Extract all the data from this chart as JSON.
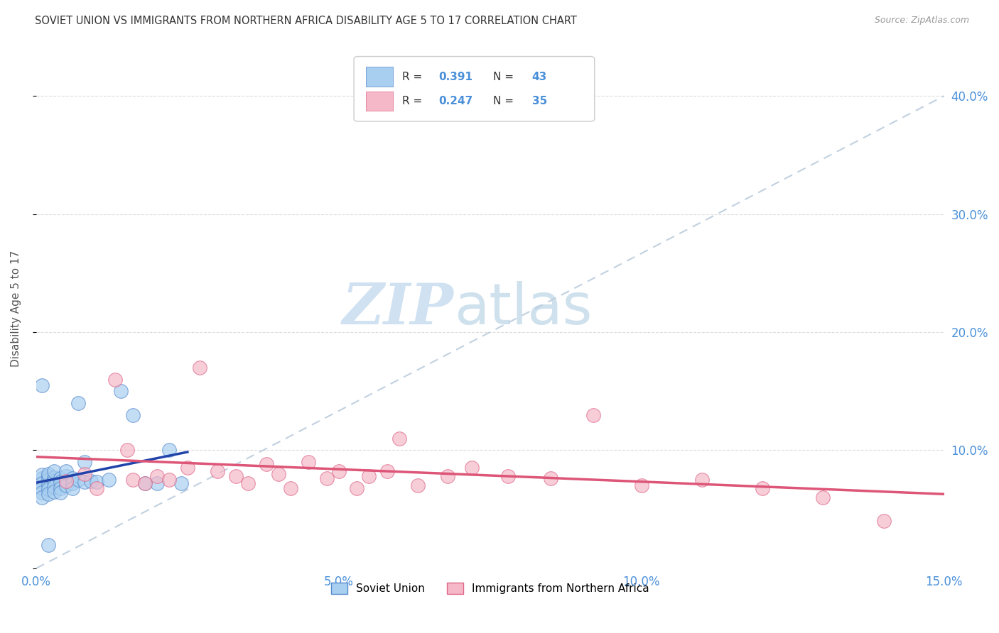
{
  "title": "SOVIET UNION VS IMMIGRANTS FROM NORTHERN AFRICA DISABILITY AGE 5 TO 17 CORRELATION CHART",
  "source": "Source: ZipAtlas.com",
  "tick_color": "#4a90d9",
  "ylabel": "Disability Age 5 to 17",
  "xlim": [
    0.0,
    0.15
  ],
  "ylim": [
    0.0,
    0.44
  ],
  "x_ticks": [
    0.0,
    0.05,
    0.1,
    0.15
  ],
  "x_tick_labels": [
    "0.0%",
    "5.0%",
    "10.0%",
    "15.0%"
  ],
  "y_ticks_right": [
    0.0,
    0.1,
    0.2,
    0.3,
    0.4
  ],
  "y_tick_labels_right": [
    "",
    "10.0%",
    "20.0%",
    "30.0%",
    "40.0%"
  ],
  "blue_scatter_color": "#A8CFF0",
  "blue_edge_color": "#5588CC",
  "pink_scatter_color": "#F5B8C8",
  "pink_edge_color": "#DD6688",
  "blue_line_color": "#2244AA",
  "pink_line_color": "#DD5577",
  "dash_color": "#BBCCDD",
  "legend_R1": "0.391",
  "legend_N1": "43",
  "legend_R2": "0.247",
  "legend_N2": "35",
  "watermark_zip_color": "#C8DCF0",
  "watermark_atlas_color": "#C0D8E8",
  "bottom_legend_1": "Soviet Union",
  "bottom_legend_2": "Immigrants from Northern Africa",
  "soviet_x": [
    0.001,
    0.001,
    0.001,
    0.001,
    0.001,
    0.001,
    0.002,
    0.002,
    0.002,
    0.002,
    0.002,
    0.002,
    0.003,
    0.003,
    0.003,
    0.003,
    0.003,
    0.004,
    0.004,
    0.004,
    0.004,
    0.005,
    0.005,
    0.005,
    0.005,
    0.006,
    0.006,
    0.006,
    0.007,
    0.007,
    0.008,
    0.008,
    0.009,
    0.01,
    0.012,
    0.014,
    0.016,
    0.018,
    0.02,
    0.022,
    0.024,
    0.001,
    0.002
  ],
  "soviet_y": [
    0.076,
    0.079,
    0.072,
    0.068,
    0.064,
    0.06,
    0.078,
    0.075,
    0.071,
    0.067,
    0.063,
    0.08,
    0.077,
    0.074,
    0.069,
    0.065,
    0.082,
    0.076,
    0.073,
    0.068,
    0.064,
    0.078,
    0.074,
    0.07,
    0.082,
    0.076,
    0.072,
    0.068,
    0.075,
    0.14,
    0.073,
    0.09,
    0.074,
    0.073,
    0.075,
    0.15,
    0.13,
    0.072,
    0.072,
    0.1,
    0.072,
    0.155,
    0.02
  ],
  "africa_x": [
    0.005,
    0.008,
    0.01,
    0.013,
    0.015,
    0.016,
    0.018,
    0.02,
    0.022,
    0.025,
    0.027,
    0.03,
    0.033,
    0.035,
    0.038,
    0.04,
    0.042,
    0.045,
    0.048,
    0.05,
    0.053,
    0.055,
    0.058,
    0.06,
    0.063,
    0.068,
    0.072,
    0.078,
    0.085,
    0.092,
    0.1,
    0.11,
    0.12,
    0.13,
    0.14
  ],
  "africa_y": [
    0.074,
    0.08,
    0.068,
    0.16,
    0.1,
    0.075,
    0.072,
    0.078,
    0.075,
    0.085,
    0.17,
    0.082,
    0.078,
    0.072,
    0.088,
    0.08,
    0.068,
    0.09,
    0.076,
    0.082,
    0.068,
    0.078,
    0.082,
    0.11,
    0.07,
    0.078,
    0.085,
    0.078,
    0.076,
    0.13,
    0.07,
    0.075,
    0.068,
    0.06,
    0.04
  ]
}
